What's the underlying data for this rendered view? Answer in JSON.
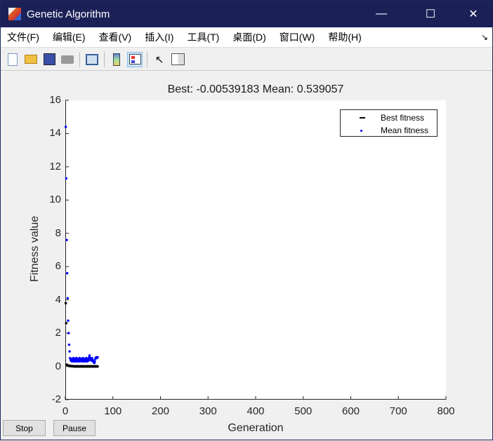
{
  "window": {
    "title": "Genetic Algorithm",
    "minimize": "—",
    "maximize": "☐",
    "close": "✕"
  },
  "menu": [
    "文件(F)",
    "编辑(E)",
    "查看(V)",
    "插入(I)",
    "工具(T)",
    "桌面(D)",
    "窗口(W)",
    "帮助(H)"
  ],
  "menu_arrow": "↘",
  "toolbar": {
    "icons": [
      "new-figure-icon",
      "open-icon",
      "save-icon",
      "print-icon",
      "link-icon",
      "colorbar-icon",
      "legend-icon",
      "pointer-icon",
      "property-editor-icon"
    ]
  },
  "buttons": {
    "stop": "Stop",
    "pause": "Pause"
  },
  "chart_data": {
    "type": "scatter",
    "title": "Best: -0.00539183 Mean: 0.539057",
    "xlabel": "Generation",
    "ylabel": "Fitness value",
    "xlim": [
      0,
      800
    ],
    "ylim": [
      -2,
      16
    ],
    "xticks": [
      0,
      100,
      200,
      300,
      400,
      500,
      600,
      700,
      800
    ],
    "yticks": [
      -2,
      0,
      2,
      4,
      6,
      8,
      10,
      12,
      14,
      16
    ],
    "legend": {
      "position": "top-right",
      "entries": [
        "Best fitness",
        "Mean fitness"
      ]
    },
    "grid": false,
    "series": [
      {
        "name": "Best fitness",
        "color": "#000000",
        "x": [
          1,
          2,
          3,
          4,
          5,
          6,
          7,
          8,
          9,
          10,
          11,
          12,
          13,
          14,
          15,
          16,
          17,
          18,
          19,
          20,
          21,
          22,
          23,
          24,
          25,
          26,
          27,
          28,
          29,
          30,
          31,
          32,
          33,
          34,
          35,
          36,
          37,
          38,
          39,
          40,
          41,
          42,
          43,
          44,
          45,
          46,
          47,
          48,
          49,
          50,
          51,
          52,
          53,
          54,
          55,
          56,
          57,
          58,
          59,
          60,
          61,
          62,
          63,
          64,
          65,
          66,
          67,
          68
        ],
        "y": [
          3.8,
          2.6,
          0.1,
          0.08,
          0.06,
          0.05,
          0.04,
          0.03,
          0.03,
          0.02,
          0.02,
          0.02,
          0.01,
          0.01,
          0.01,
          0.01,
          0.01,
          0,
          0,
          0,
          0,
          0,
          0,
          0,
          0,
          0,
          0,
          0,
          0,
          0,
          0,
          0,
          0,
          0,
          0,
          0,
          0,
          0,
          0,
          0,
          0,
          0,
          0,
          0,
          0,
          0,
          0,
          0,
          0,
          0,
          0,
          0,
          0,
          0,
          0,
          0,
          0,
          0,
          0,
          0,
          0,
          0,
          0,
          0,
          0,
          0,
          0,
          -0.005
        ]
      },
      {
        "name": "Mean fitness",
        "color": "#0000ff",
        "x": [
          1,
          2,
          3,
          4,
          5,
          6,
          7,
          8,
          9,
          10,
          11,
          12,
          13,
          14,
          15,
          16,
          17,
          18,
          19,
          20,
          21,
          22,
          23,
          24,
          25,
          26,
          27,
          28,
          29,
          30,
          31,
          32,
          33,
          34,
          35,
          36,
          37,
          38,
          39,
          40,
          41,
          42,
          43,
          44,
          45,
          46,
          47,
          48,
          49,
          50,
          51,
          52,
          53,
          54,
          55,
          56,
          57,
          58,
          59,
          60,
          61,
          62,
          63,
          64,
          65,
          66,
          67,
          68
        ],
        "y": [
          14.4,
          11.3,
          7.6,
          5.6,
          4.1,
          2.75,
          2.0,
          1.3,
          0.9,
          0.5,
          0.4,
          0.35,
          0.45,
          0.3,
          0.4,
          0.35,
          0.5,
          0.3,
          0.4,
          0.45,
          0.3,
          0.35,
          0.5,
          0.4,
          0.3,
          0.45,
          0.35,
          0.4,
          0.3,
          0.5,
          0.35,
          0.4,
          0.45,
          0.3,
          0.35,
          0.4,
          0.5,
          0.3,
          0.4,
          0.35,
          0.45,
          0.3,
          0.4,
          0.5,
          0.35,
          0.3,
          0.4,
          0.45,
          0.35,
          0.55,
          0.65,
          0.5,
          0.4,
          0.45,
          0.35,
          0.5,
          0.4,
          0.3,
          0.35,
          0.25,
          0.2,
          0.3,
          0.45,
          0.5,
          0.55,
          0.5,
          0.55,
          0.54
        ]
      }
    ]
  }
}
